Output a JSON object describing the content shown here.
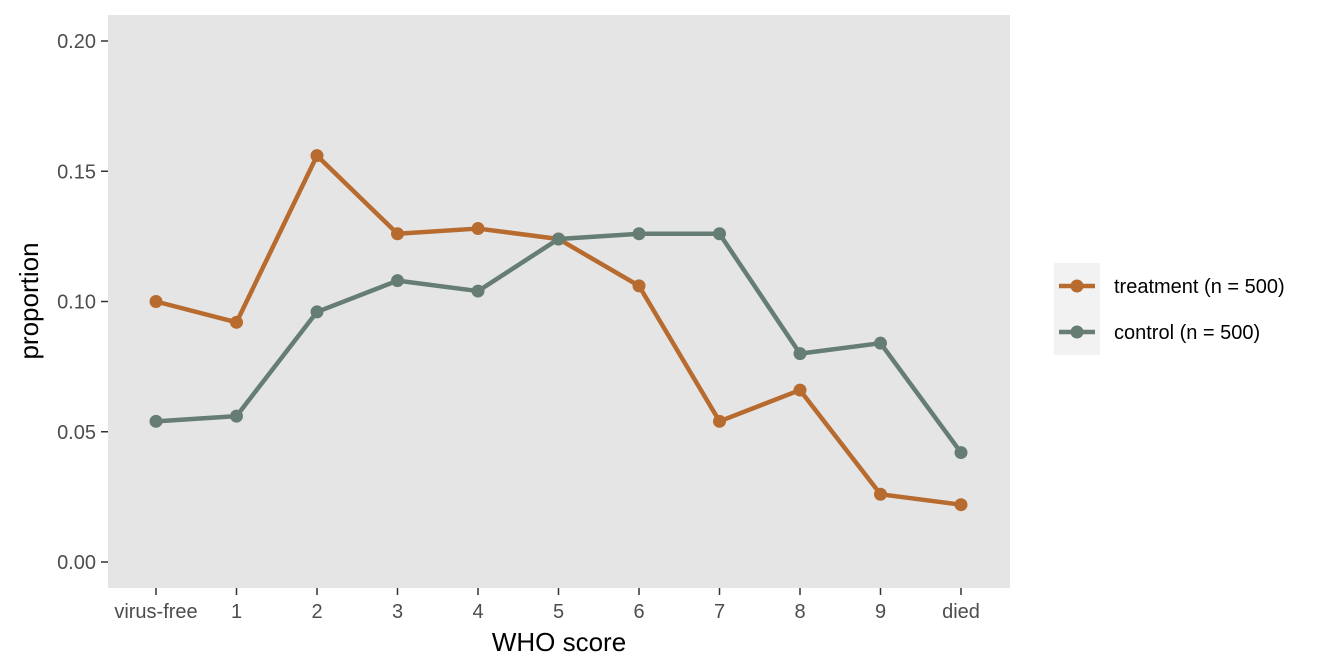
{
  "chart_data": {
    "type": "line",
    "title": "",
    "xlabel": "WHO score",
    "ylabel": "proportion",
    "categories": [
      "virus-free",
      "1",
      "2",
      "3",
      "4",
      "5",
      "6",
      "7",
      "8",
      "9",
      "died"
    ],
    "ylim": [
      0,
      0.2
    ],
    "yticks": [
      0.0,
      0.05,
      0.1,
      0.15,
      0.2
    ],
    "ytick_labels": [
      "0.00",
      "0.05",
      "0.10",
      "0.15",
      "0.20"
    ],
    "grid": false,
    "legend_position": "right",
    "series": [
      {
        "name": "treatment (n = 500)",
        "color": "#b86b2e",
        "values": [
          0.1,
          0.092,
          0.156,
          0.126,
          0.128,
          0.124,
          0.106,
          0.054,
          0.066,
          0.026,
          0.022
        ]
      },
      {
        "name": "control (n = 500)",
        "color": "#667d74",
        "values": [
          0.054,
          0.056,
          0.096,
          0.108,
          0.104,
          0.124,
          0.126,
          0.126,
          0.08,
          0.084,
          0.042
        ]
      }
    ],
    "panel_background": "#e5e5e5",
    "legend_background": "#f2f2f2"
  }
}
